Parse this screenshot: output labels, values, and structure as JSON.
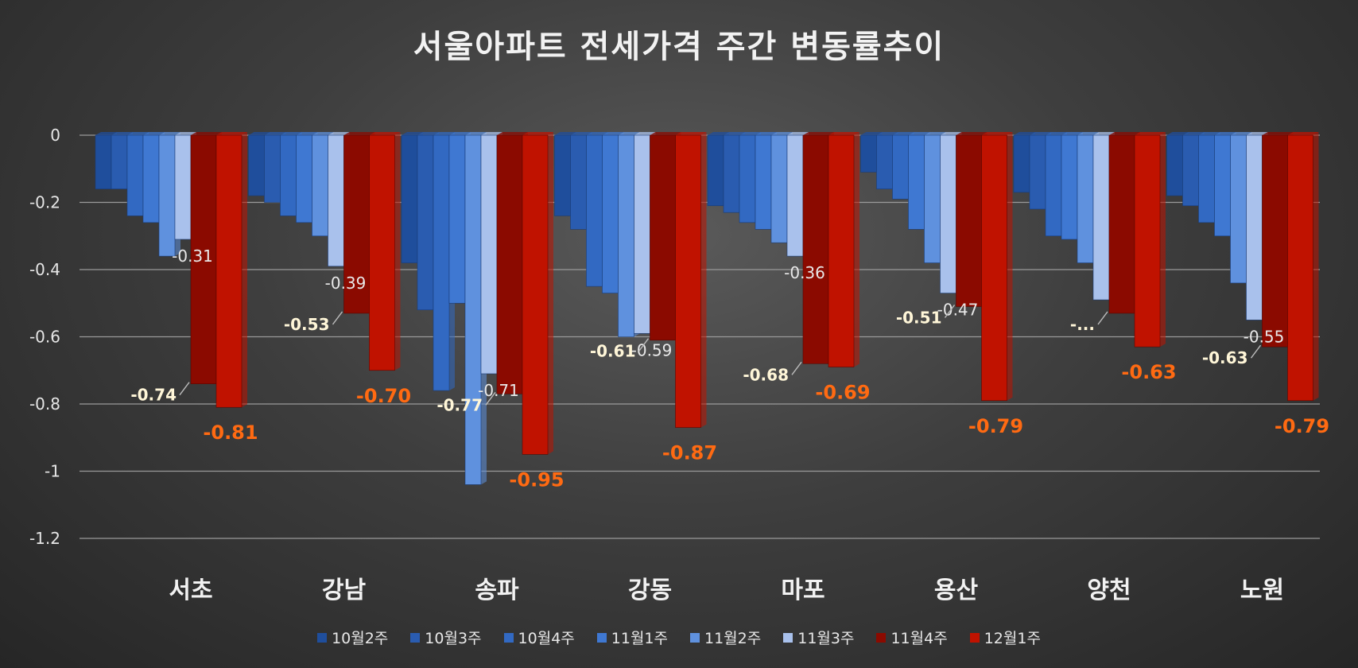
{
  "title": "서울아파트 전세가격 주간 변동률추이",
  "chart_data": {
    "type": "bar",
    "title": "서울아파트 전세가격 주간 변동률추이",
    "categories": [
      "서초",
      "강남",
      "송파",
      "강동",
      "마포",
      "용산",
      "양천",
      "노원"
    ],
    "ylim": [
      -1.2,
      0
    ],
    "yticks": [
      "0",
      "-0.2",
      "-0.4",
      "-0.6",
      "-0.8",
      "-1",
      "-1.2"
    ],
    "grid": true,
    "legend_position": "bottom",
    "series": [
      {
        "name": "10월2주",
        "color": "#1f4e9c",
        "values": [
          -0.16,
          -0.18,
          -0.38,
          -0.24,
          -0.21,
          -0.11,
          -0.17,
          -0.18
        ]
      },
      {
        "name": "10월3주",
        "color": "#2a5cb0",
        "values": [
          -0.16,
          -0.2,
          -0.52,
          -0.28,
          -0.23,
          -0.16,
          -0.22,
          -0.21
        ]
      },
      {
        "name": "10월4주",
        "color": "#3269c2",
        "values": [
          -0.24,
          -0.24,
          -0.76,
          -0.45,
          -0.26,
          -0.19,
          -0.3,
          -0.26
        ]
      },
      {
        "name": "11월1주",
        "color": "#3f78d2",
        "values": [
          -0.26,
          -0.26,
          -0.5,
          -0.47,
          -0.28,
          -0.28,
          -0.31,
          -0.3
        ]
      },
      {
        "name": "11월2주",
        "color": "#5f91de",
        "values": [
          -0.36,
          -0.3,
          -1.04,
          -0.6,
          -0.32,
          -0.38,
          -0.38,
          -0.44
        ]
      },
      {
        "name": "11월3주",
        "color": "#a9c1ec",
        "values": [
          -0.31,
          -0.39,
          -0.71,
          -0.59,
          -0.36,
          -0.47,
          -0.49,
          -0.55
        ]
      },
      {
        "name": "11월4주",
        "color": "#8b0a00",
        "values": [
          -0.74,
          -0.53,
          -0.77,
          -0.61,
          -0.68,
          -0.51,
          -0.53,
          -0.63
        ]
      },
      {
        "name": "12월1주",
        "color": "#c01200",
        "values": [
          -0.81,
          -0.7,
          -0.95,
          -0.87,
          -0.69,
          -0.79,
          -0.63,
          -0.79
        ]
      }
    ],
    "data_labels": {
      "11월3주": [
        "-0.31",
        "-0.39",
        "-0.71",
        "-0.59",
        "-0.36",
        "-0.47",
        "",
        "-0.55"
      ],
      "11월4주": [
        "-0.74",
        "-0.53",
        "-0.77",
        "-0.61",
        "-0.68",
        "-0.51",
        "-...",
        "-0.63"
      ],
      "12월1주": [
        "-0.81",
        "-0.70",
        "-0.95",
        "-0.87",
        "-0.69",
        "-0.79",
        "-0.63",
        "-0.79"
      ]
    }
  }
}
